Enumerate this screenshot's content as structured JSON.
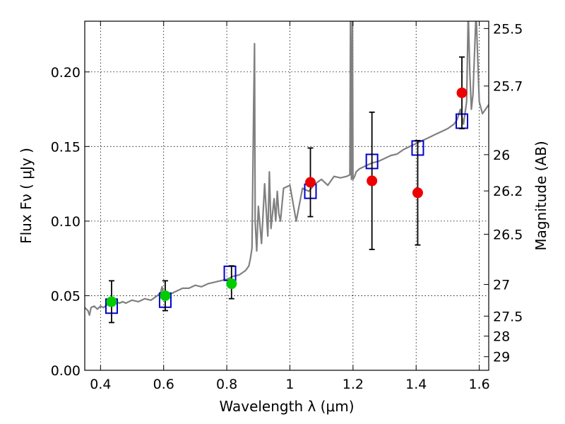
{
  "chart_data": {
    "type": "scatter",
    "xlabel": "Wavelength  λ (μm)",
    "ylabel": "Flux  Fν  ( μJy )",
    "ylabel_right": "Magnitude (AB)",
    "xlim": [
      0.35,
      1.63
    ],
    "ylim": [
      0.0,
      0.234
    ],
    "grid": true,
    "x_ticks": [
      "0.4",
      "0.6",
      "0.8",
      "1",
      "1.2",
      "1.4",
      "1.6"
    ],
    "y_ticks": [
      "0.00",
      "0.05",
      "0.10",
      "0.15",
      "0.20"
    ],
    "right_ticks": [
      {
        "label": "25.5",
        "mag": 25.5
      },
      {
        "label": "25.7",
        "mag": 25.7
      },
      {
        "label": "26",
        "mag": 26.0
      },
      {
        "label": "26.2",
        "mag": 26.2
      },
      {
        "label": "26.5",
        "mag": 26.5
      },
      {
        "label": "27",
        "mag": 27.0
      },
      {
        "label": "27.5",
        "mag": 27.5
      },
      {
        "label": "28",
        "mag": 28.0
      },
      {
        "label": "29",
        "mag": 29.0
      }
    ],
    "colors": {
      "spectrum": "#808080",
      "model_points": "#0000cc",
      "optical_points": "#00cc00",
      "nir_points": "#ee0000",
      "error_bars": "#000000"
    },
    "spectrum": {
      "x": [
        0.35,
        0.36,
        0.365,
        0.37,
        0.38,
        0.39,
        0.4,
        0.41,
        0.42,
        0.43,
        0.44,
        0.45,
        0.46,
        0.47,
        0.48,
        0.5,
        0.52,
        0.54,
        0.56,
        0.58,
        0.59,
        0.595,
        0.6,
        0.62,
        0.64,
        0.66,
        0.68,
        0.7,
        0.72,
        0.74,
        0.76,
        0.78,
        0.8,
        0.82,
        0.84,
        0.86,
        0.87,
        0.875,
        0.88,
        0.885,
        0.888,
        0.89,
        0.895,
        0.9,
        0.91,
        0.92,
        0.93,
        0.935,
        0.94,
        0.95,
        0.955,
        0.96,
        0.965,
        0.97,
        0.98,
        1.0,
        1.02,
        1.04,
        1.06,
        1.08,
        1.1,
        1.12,
        1.14,
        1.16,
        1.18,
        1.19,
        1.192,
        1.195,
        1.198,
        1.2,
        1.205,
        1.21,
        1.22,
        1.24,
        1.26,
        1.28,
        1.3,
        1.32,
        1.34,
        1.36,
        1.38,
        1.4,
        1.42,
        1.44,
        1.46,
        1.48,
        1.5,
        1.52,
        1.53,
        1.54,
        1.55,
        1.56,
        1.565,
        1.57,
        1.575,
        1.58,
        1.59,
        1.6,
        1.61,
        1.62,
        1.63
      ],
      "y": [
        0.042,
        0.04,
        0.037,
        0.042,
        0.043,
        0.041,
        0.043,
        0.042,
        0.044,
        0.043,
        0.044,
        0.046,
        0.045,
        0.046,
        0.045,
        0.047,
        0.046,
        0.048,
        0.047,
        0.05,
        0.052,
        0.056,
        0.05,
        0.051,
        0.053,
        0.055,
        0.055,
        0.057,
        0.056,
        0.058,
        0.059,
        0.06,
        0.061,
        0.063,
        0.064,
        0.067,
        0.07,
        0.075,
        0.082,
        0.175,
        0.219,
        0.1,
        0.08,
        0.11,
        0.085,
        0.125,
        0.09,
        0.133,
        0.095,
        0.115,
        0.1,
        0.12,
        0.105,
        0.1,
        0.122,
        0.124,
        0.1,
        0.122,
        0.12,
        0.125,
        0.128,
        0.124,
        0.13,
        0.129,
        0.13,
        0.131,
        0.24,
        0.128,
        0.24,
        0.128,
        0.13,
        0.133,
        0.135,
        0.137,
        0.139,
        0.14,
        0.142,
        0.144,
        0.145,
        0.148,
        0.15,
        0.152,
        0.154,
        0.156,
        0.158,
        0.16,
        0.162,
        0.165,
        0.168,
        0.175,
        0.165,
        0.18,
        0.24,
        0.2,
        0.175,
        0.185,
        0.24,
        0.18,
        0.172,
        0.175,
        0.178
      ]
    },
    "model_points": [
      {
        "x": 0.435,
        "y": 0.043
      },
      {
        "x": 0.605,
        "y": 0.047
      },
      {
        "x": 0.81,
        "y": 0.065
      },
      {
        "x": 1.065,
        "y": 0.12
      },
      {
        "x": 1.26,
        "y": 0.14
      },
      {
        "x": 1.405,
        "y": 0.149
      },
      {
        "x": 1.545,
        "y": 0.167
      }
    ],
    "observed_points": [
      {
        "x": 0.435,
        "y": 0.046,
        "err_low": 0.032,
        "err_high": 0.06,
        "group": "optical"
      },
      {
        "x": 0.605,
        "y": 0.05,
        "err_low": 0.04,
        "err_high": 0.06,
        "group": "optical"
      },
      {
        "x": 0.815,
        "y": 0.058,
        "err_low": 0.048,
        "err_high": 0.07,
        "group": "optical"
      },
      {
        "x": 1.065,
        "y": 0.126,
        "err_low": 0.103,
        "err_high": 0.149,
        "group": "nir"
      },
      {
        "x": 1.26,
        "y": 0.127,
        "err_low": 0.081,
        "err_high": 0.173,
        "group": "nir"
      },
      {
        "x": 1.405,
        "y": 0.119,
        "err_low": 0.084,
        "err_high": 0.154,
        "group": "nir"
      },
      {
        "x": 1.545,
        "y": 0.186,
        "err_low": 0.162,
        "err_high": 0.21,
        "group": "nir"
      }
    ]
  }
}
